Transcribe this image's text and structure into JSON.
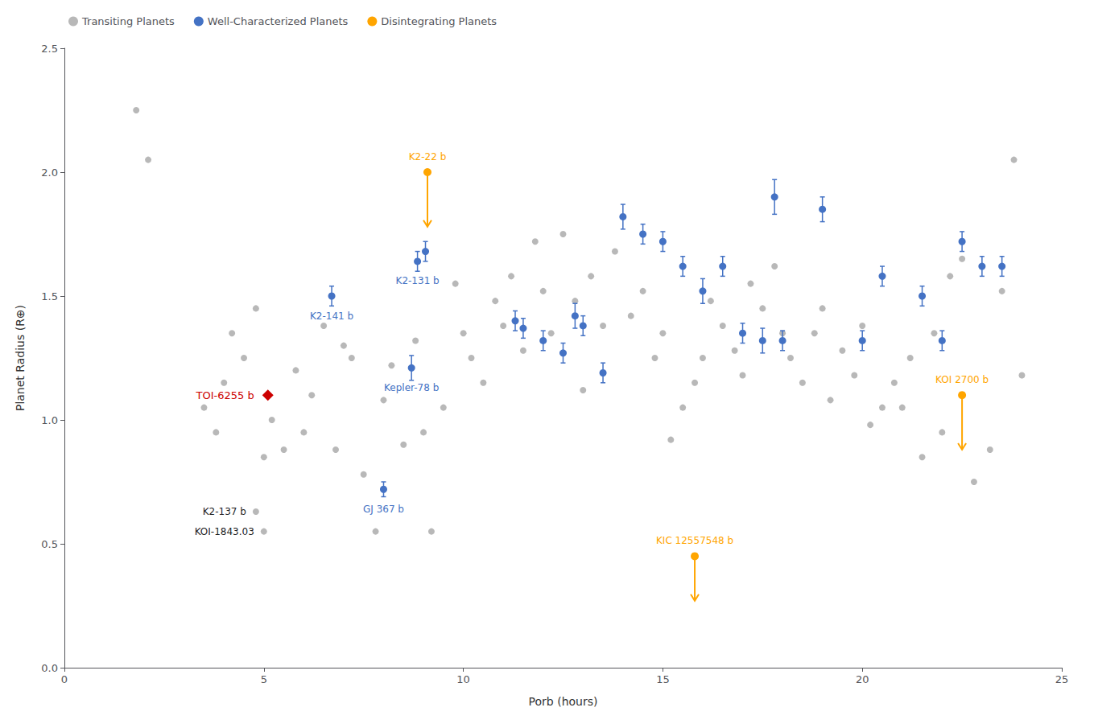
{
  "chart_data": {
    "type": "scatter",
    "xlabel": "Porb (hours)",
    "ylabel": "Planet Radius (R⊕)",
    "xlim": [
      0,
      25
    ],
    "ylim": [
      0.0,
      2.5
    ],
    "xticks": [
      0,
      5,
      10,
      15,
      20,
      25
    ],
    "yticks": [
      {
        "value": 0.0,
        "label": "0.0"
      },
      0.5,
      {
        "value": 1.0,
        "label": "1.0"
      },
      1.5,
      {
        "value": 2.0,
        "label": "2.0"
      },
      2.5
    ],
    "grid": false,
    "legend": "upper left",
    "series": [
      {
        "name": "Transiting Planets",
        "color": "#b0b0b0",
        "marker": "circle",
        "x": [
          1.8,
          2.1,
          3.5,
          3.8,
          4.0,
          4.2,
          4.5,
          4.8,
          5.0,
          5.2,
          5.5,
          5.8,
          6.0,
          6.2,
          6.5,
          6.8,
          7.0,
          7.2,
          7.5,
          7.8,
          8.0,
          8.2,
          8.5,
          8.8,
          9.0,
          9.2,
          9.5,
          9.8,
          10.0,
          10.2,
          10.5,
          10.8,
          11.0,
          11.2,
          11.5,
          11.8,
          12.0,
          12.2,
          12.5,
          12.8,
          13.0,
          13.2,
          13.5,
          13.8,
          14.0,
          14.2,
          14.5,
          14.8,
          15.0,
          15.2,
          15.5,
          15.8,
          16.0,
          16.2,
          16.5,
          16.8,
          17.0,
          17.2,
          17.5,
          17.8,
          18.0,
          18.2,
          18.5,
          18.8,
          19.0,
          19.2,
          19.5,
          19.8,
          20.0,
          20.2,
          20.5,
          20.8,
          21.0,
          21.2,
          21.5,
          21.8,
          22.0,
          22.2,
          22.5,
          22.8,
          23.0,
          23.2,
          23.5,
          23.8,
          24.0
        ],
        "values": [
          2.25,
          2.05,
          1.05,
          0.95,
          1.15,
          1.35,
          1.25,
          1.45,
          0.85,
          1.0,
          0.88,
          1.2,
          0.95,
          1.1,
          1.38,
          0.88,
          1.3,
          1.25,
          0.78,
          0.55,
          1.08,
          1.22,
          0.9,
          1.32,
          0.95,
          0.55,
          1.05,
          1.55,
          1.35,
          1.25,
          1.15,
          1.48,
          1.38,
          1.58,
          1.28,
          1.72,
          1.52,
          1.35,
          1.75,
          1.48,
          1.12,
          1.58,
          1.38,
          1.68,
          1.82,
          1.42,
          1.52,
          1.25,
          1.35,
          0.92,
          1.05,
          1.15,
          1.25,
          1.48,
          1.38,
          1.28,
          1.18,
          1.55,
          1.45,
          1.62,
          1.35,
          1.25,
          1.15,
          1.35,
          1.45,
          1.08,
          1.28,
          1.18,
          1.38,
          0.98,
          1.05,
          1.15,
          1.05,
          1.25,
          0.85,
          1.35,
          0.95,
          1.58,
          1.65,
          0.75,
          1.62,
          0.88,
          1.52,
          2.05,
          1.18
        ]
      },
      {
        "color": "#b0b0b0",
        "marker": "circle",
        "x": [
          4.8,
          5.0
        ],
        "values": [
          0.63,
          0.55
        ],
        "labels": [
          "K2-137 b",
          "KOI-1843.03"
        ]
      },
      {
        "name": "Well-Characterized Planets",
        "color": "#4472C4",
        "marker": "circle",
        "x": [
          6.7,
          8.85,
          9.05,
          8.7,
          8.0,
          11.3,
          11.5,
          12.0,
          12.5,
          12.8,
          13.0,
          13.5,
          14.0,
          14.5,
          15.0,
          15.5,
          16.0,
          16.5,
          17.0,
          17.5,
          17.8,
          18.0,
          19.0,
          20.0,
          20.5,
          21.5,
          22.0,
          22.5,
          23.0,
          23.5
        ],
        "values": [
          1.5,
          1.64,
          1.68,
          1.21,
          0.72,
          1.4,
          1.37,
          1.32,
          1.27,
          1.42,
          1.38,
          1.19,
          1.82,
          1.75,
          1.72,
          1.62,
          1.52,
          1.62,
          1.35,
          1.32,
          1.9,
          1.32,
          1.85,
          1.32,
          1.58,
          1.5,
          1.32,
          1.72,
          1.62,
          1.62
        ],
        "yerr": [
          0.04,
          0.04,
          0.04,
          0.05,
          0.03,
          0.04,
          0.04,
          0.04,
          0.04,
          0.05,
          0.04,
          0.04,
          0.05,
          0.04,
          0.04,
          0.04,
          0.05,
          0.04,
          0.04,
          0.05,
          0.07,
          0.04,
          0.05,
          0.04,
          0.04,
          0.04,
          0.04,
          0.04,
          0.04,
          0.04
        ],
        "labels": [
          "K2-141 b",
          "K2-131 b",
          null,
          "Kepler-78 b",
          "GJ 367 b",
          null,
          null,
          null,
          null,
          null,
          null,
          null,
          null,
          null,
          null,
          null,
          null,
          null,
          null,
          null,
          null,
          null,
          null,
          null,
          null,
          null,
          null,
          null,
          null,
          null
        ]
      },
      {
        "name": "Disintegrating Planets",
        "color": "#FFA500",
        "marker": "circle",
        "x": [
          9.1,
          15.8,
          22.5
        ],
        "values": [
          2.0,
          0.45,
          1.1
        ],
        "arrow_dy": [
          -0.22,
          -0.18,
          -0.22
        ],
        "labels": [
          "K2-22 b",
          "KIC 12557548 b",
          "KOI 2700 b"
        ]
      },
      {
        "color": "#CC0000",
        "marker": "diamond",
        "x": [
          5.1
        ],
        "values": [
          1.1
        ],
        "labels": [
          "TOI-6255 b"
        ]
      }
    ]
  }
}
